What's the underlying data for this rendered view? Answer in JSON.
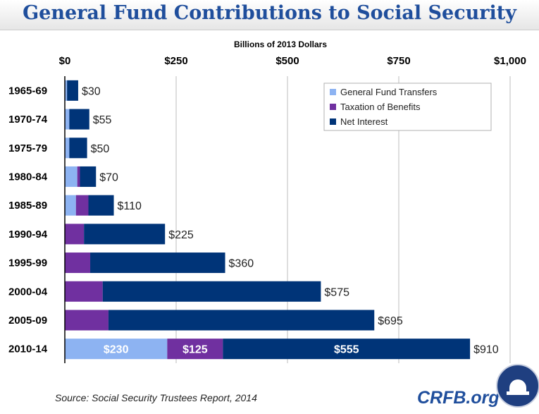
{
  "title": "General Fund Contributions to Social Security",
  "source": "Source: Social Security Trustees Report, 2014",
  "brand": "CRFB.org",
  "chart_data": {
    "type": "bar",
    "orientation": "horizontal",
    "stacked": true,
    "title": "General Fund Contributions to Social Security",
    "xlabel": "Billions of 2013 Dollars",
    "xlim": [
      0,
      1000
    ],
    "xticks": [
      0,
      250,
      500,
      750,
      1000
    ],
    "xtick_labels": [
      "$0",
      "$250",
      "$500",
      "$750",
      "$1,000"
    ],
    "grid": true,
    "legend_position": "top-right",
    "categories": [
      "1965-69",
      "1970-74",
      "1975-79",
      "1980-84",
      "1985-89",
      "1990-94",
      "1995-99",
      "2000-04",
      "2005-09",
      "2010-14"
    ],
    "series": [
      {
        "name": "General Fund Transfers",
        "color": "#8db3f2",
        "values": [
          5,
          10,
          10,
          28,
          25,
          0,
          0,
          0,
          0,
          230
        ]
      },
      {
        "name": "Taxation of Benefits",
        "color": "#7030a0",
        "values": [
          0,
          0,
          0,
          6,
          28,
          43,
          57,
          85,
          98,
          125
        ]
      },
      {
        "name": "Net Interest",
        "color": "#003478",
        "values": [
          25,
          45,
          40,
          36,
          57,
          182,
          303,
          490,
          597,
          555
        ]
      }
    ],
    "total_labels": [
      "$30",
      "$55",
      "$50",
      "$70",
      "$110",
      "$225",
      "$360",
      "$575",
      "$695",
      "$910"
    ],
    "segment_labels_2010_14": [
      "$230",
      "$125",
      "$555"
    ]
  }
}
